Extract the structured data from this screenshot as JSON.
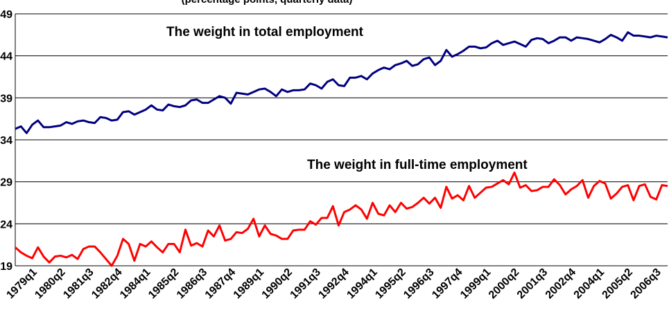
{
  "chart_data": {
    "type": "line",
    "subtitle": "(percentage points, quarterly data)",
    "annotations": [
      "The weight in total employment",
      "The weight in full-time employment"
    ],
    "categories": [
      "1979q1",
      null,
      null,
      null,
      null,
      "1980q2",
      null,
      null,
      null,
      null,
      "1981q3",
      null,
      null,
      null,
      null,
      "1982q4",
      null,
      null,
      null,
      null,
      "1984q1",
      null,
      null,
      null,
      null,
      "1985q2",
      null,
      null,
      null,
      null,
      "1986q3",
      null,
      null,
      null,
      null,
      "1987q4",
      null,
      null,
      null,
      null,
      "1989q1",
      null,
      null,
      null,
      null,
      "1990q2",
      null,
      null,
      null,
      null,
      "1991q3",
      null,
      null,
      null,
      null,
      "1992q4",
      null,
      null,
      null,
      null,
      "1994q1",
      null,
      null,
      null,
      null,
      "1995q2",
      null,
      null,
      null,
      null,
      "1996q3",
      null,
      null,
      null,
      null,
      "1997q4",
      null,
      null,
      null,
      null,
      "1999q1",
      null,
      null,
      null,
      null,
      "2000q2",
      null,
      null,
      null,
      null,
      "2001q3",
      null,
      null,
      null,
      null,
      "2002q4",
      null,
      null,
      null,
      null,
      "2004q1",
      null,
      null,
      null,
      null,
      "2005q2",
      null,
      null,
      null,
      null,
      "2006q3",
      null,
      null,
      null,
      null,
      null
    ],
    "series": [
      {
        "name": "The weight in total employment",
        "color": "#000080",
        "values": [
          35.3,
          35.6,
          34.8,
          35.8,
          36.3,
          35.5,
          35.5,
          35.6,
          35.7,
          36.1,
          35.9,
          36.2,
          36.3,
          36.1,
          36.0,
          36.7,
          36.6,
          36.3,
          36.4,
          37.3,
          37.4,
          37.0,
          37.3,
          37.6,
          38.1,
          37.6,
          37.5,
          38.2,
          38.0,
          37.9,
          38.1,
          38.7,
          38.8,
          38.4,
          38.4,
          38.8,
          39.2,
          39.0,
          38.3,
          39.6,
          39.5,
          39.4,
          39.7,
          40.0,
          40.1,
          39.7,
          39.2,
          40.0,
          39.7,
          39.9,
          39.9,
          40.0,
          40.7,
          40.5,
          40.1,
          40.9,
          41.2,
          40.5,
          40.4,
          41.4,
          41.4,
          41.6,
          41.2,
          41.9,
          42.3,
          42.6,
          42.4,
          42.9,
          43.1,
          43.4,
          42.8,
          43.0,
          43.6,
          43.8,
          42.9,
          43.4,
          44.7,
          43.9,
          44.2,
          44.6,
          45.1,
          45.1,
          44.9,
          45.0,
          45.5,
          45.8,
          45.3,
          45.5,
          45.7,
          45.4,
          45.1,
          45.9,
          46.1,
          46.0,
          45.5,
          45.8,
          46.2,
          46.2,
          45.8,
          46.2,
          46.1,
          46.0,
          45.8,
          45.6,
          46.0,
          46.5,
          46.2,
          45.8,
          46.8,
          46.4,
          46.4,
          46.3,
          46.2,
          46.4,
          46.3,
          46.2
        ]
      },
      {
        "name": "The weight in full-time employment",
        "color": "#ff0000",
        "values": [
          21.2,
          20.6,
          20.2,
          19.9,
          21.2,
          20.1,
          19.4,
          20.1,
          20.2,
          20.0,
          20.3,
          19.8,
          21.0,
          21.3,
          21.3,
          20.6,
          19.8,
          19.0,
          20.2,
          22.2,
          21.6,
          19.6,
          21.6,
          21.3,
          21.9,
          21.2,
          20.6,
          21.6,
          21.6,
          20.6,
          23.3,
          21.4,
          21.7,
          21.3,
          23.2,
          22.5,
          23.8,
          22.0,
          22.2,
          23.0,
          22.9,
          23.4,
          24.6,
          22.5,
          23.8,
          22.8,
          22.6,
          22.2,
          22.2,
          23.2,
          23.3,
          23.3,
          24.3,
          23.9,
          24.7,
          24.7,
          26.1,
          23.8,
          25.4,
          25.7,
          26.2,
          25.7,
          24.6,
          26.5,
          25.2,
          25.0,
          26.2,
          25.4,
          26.5,
          25.8,
          26.0,
          26.5,
          27.1,
          26.4,
          27.1,
          25.9,
          28.4,
          27.0,
          27.4,
          26.8,
          28.5,
          27.1,
          27.7,
          28.3,
          28.4,
          28.8,
          29.2,
          28.7,
          30.1,
          28.3,
          28.6,
          27.9,
          28.0,
          28.4,
          28.4,
          29.3,
          28.6,
          27.5,
          28.1,
          28.5,
          29.2,
          27.1,
          28.5,
          29.1,
          28.8,
          27.0,
          27.6,
          28.4,
          28.6,
          26.8,
          28.5,
          28.7,
          27.2,
          26.9,
          28.6,
          28.5
        ]
      }
    ],
    "ylim": [
      19,
      49
    ],
    "yticks": [
      19,
      24,
      29,
      34,
      39,
      44,
      49
    ],
    "grid": true
  }
}
